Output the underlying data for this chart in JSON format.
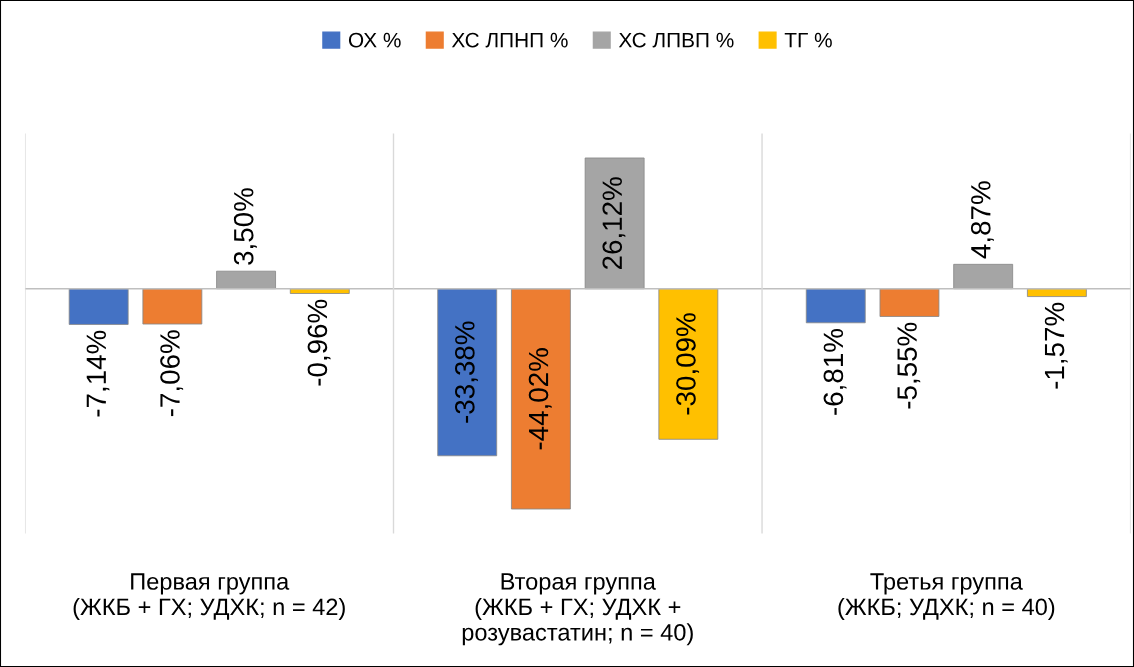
{
  "chart_data": {
    "type": "bar",
    "categories": [
      "Первая группа\n(ЖКБ + ГХ; УДХК; n = 42)",
      "Вторая группа\n(ЖКБ + ГХ; УДХК +\nрозувастатин; n = 40)",
      "Третья группа\n(ЖКБ; УДХК; n = 40)"
    ],
    "series": [
      {
        "name": "ОХ %",
        "color": "#4472c4",
        "values": [
          -7.14,
          -33.38,
          -6.81
        ],
        "value_labels": [
          "-7,14%",
          "-33,38%",
          "-6,81%"
        ]
      },
      {
        "name": "ХС ЛПНП %",
        "color": "#ed7d31",
        "values": [
          -7.06,
          -44.02,
          -5.55
        ],
        "value_labels": [
          "-7,06%",
          "-44,02%",
          "-5,55%"
        ]
      },
      {
        "name": "ХС ЛПВП %",
        "color": "#a5a5a5",
        "values": [
          3.5,
          26.12,
          4.87
        ],
        "value_labels": [
          "3,50%",
          "26,12%",
          "4,87%"
        ]
      },
      {
        "name": "ТГ %",
        "color": "#ffc000",
        "values": [
          -0.96,
          -30.09,
          -1.57
        ],
        "value_labels": [
          "-0,96%",
          "-30,09%",
          "-1,57%"
        ]
      }
    ],
    "grid": "x",
    "legend": "top",
    "tick_labels": "x"
  }
}
